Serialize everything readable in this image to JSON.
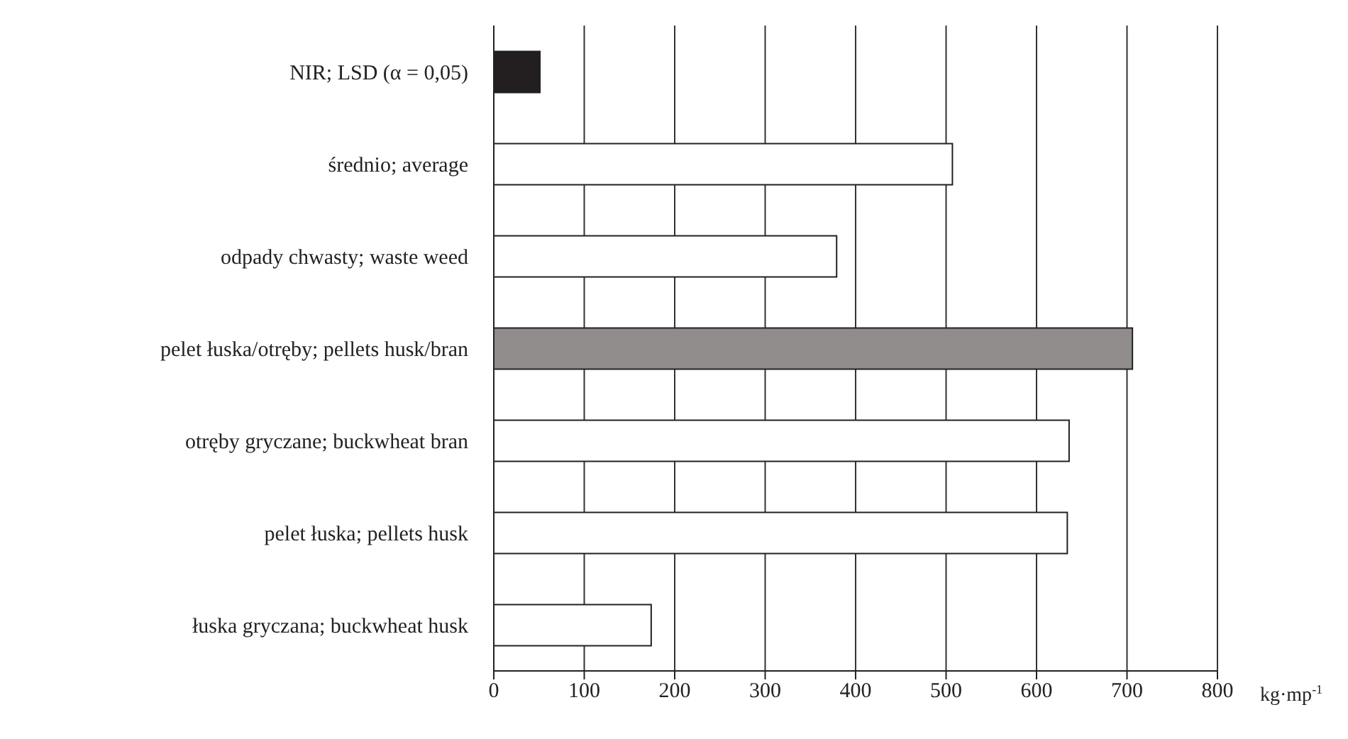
{
  "chart_data": {
    "type": "bar",
    "orientation": "horizontal",
    "categories": [
      "NIR; LSD (α = 0,05)",
      "średnio; average",
      "odpady chwasty; waste weed",
      "pelet łuska/otręby; pellets husk/bran",
      "otręby gryczane; buckwheat bran",
      "pelet łuska; pellets husk",
      "łuska gryczana; buckwheat husk"
    ],
    "values": [
      51,
      507,
      379,
      706,
      636,
      634,
      174
    ],
    "colors": [
      "#231f20",
      "#ffffff",
      "#ffffff",
      "#918c8c",
      "#ffffff",
      "#ffffff",
      "#ffffff"
    ],
    "xlabel": "kg·mp$^{-1}$",
    "xlim": [
      0,
      800
    ],
    "xticks": [
      0,
      100,
      200,
      300,
      400,
      500,
      600,
      700,
      800
    ],
    "grid": "x"
  }
}
